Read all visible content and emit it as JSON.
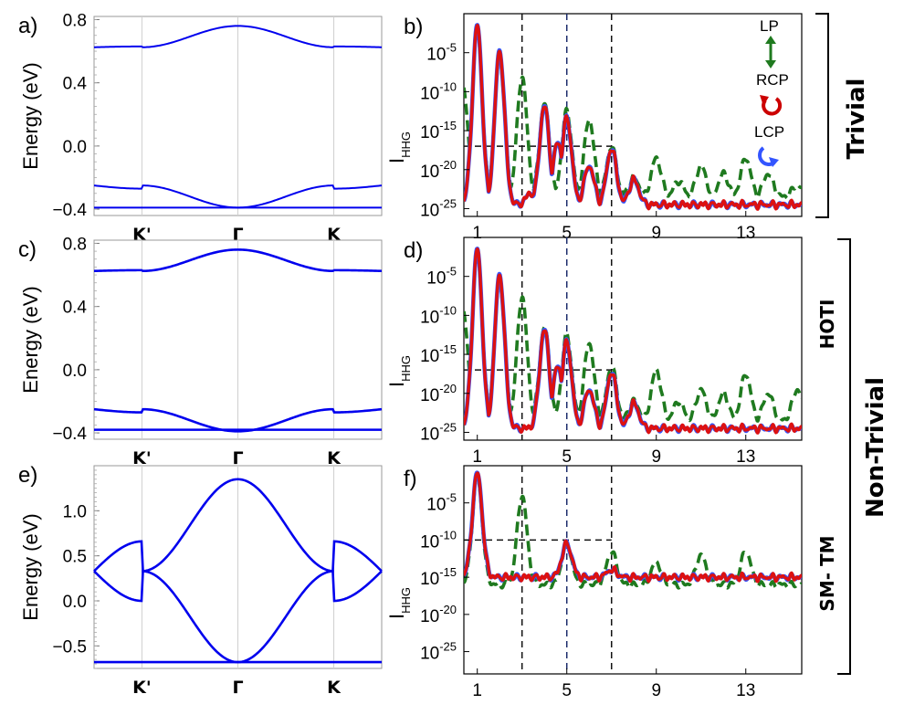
{
  "chart_data": [
    {
      "panel": "a)",
      "type": "line",
      "ylabel": "Energy (eV)",
      "ylim": [
        -0.44,
        0.82
      ],
      "yticks": [
        "0.8",
        "0.4",
        "0.0",
        "−0.4"
      ],
      "ytick_values": [
        0.8,
        0.4,
        0.0,
        -0.4
      ],
      "xticks": [
        "K'",
        "Γ",
        "K"
      ],
      "bands": [
        {
          "name": "",
          "k_points": [
            "K'",
            "Γ",
            "K"
          ],
          "edge": 0.63,
          "center": 0.76,
          "periodic_cos": true
        },
        {
          "name": "",
          "edge": -0.27,
          "center": -0.245,
          "min_at_gamma": -0.39,
          "crossing": true
        },
        {
          "name": "",
          "flat": -0.39
        }
      ],
      "color": "#0000ee"
    },
    {
      "panel": "b)",
      "type": "line",
      "ylabel": "I_HHG",
      "yscale": "log",
      "ylim_exp": [
        -26,
        0
      ],
      "yticks_exp": [
        -5,
        -10,
        -15,
        -20,
        -25
      ],
      "xticks": [
        "1",
        "5",
        "9",
        "13"
      ],
      "xtick_values": [
        1,
        5,
        9,
        13
      ],
      "xlim": [
        0.4,
        15.5
      ],
      "vlines": [
        3,
        5,
        7
      ],
      "hline_exp": -17,
      "series": [
        {
          "name": "LP",
          "color": "#1f7a1f",
          "style": "dashed"
        },
        {
          "name": "RCP",
          "color": "#cc0000",
          "style": "solid"
        },
        {
          "name": "LCP",
          "color": "#3355ff",
          "style": "solid"
        }
      ],
      "harmonics_peak_exp": {
        "1": -1.5,
        "2": -5,
        "3": -12,
        "4": -12,
        "5": -14,
        "6": -17,
        "7": -17,
        "8": -21
      },
      "side_label": "Trivial"
    },
    {
      "panel": "c)",
      "type": "line",
      "ylabel": "Energy (eV)",
      "ylim": [
        -0.44,
        0.82
      ],
      "yticks": [
        "0.8",
        "0.4",
        "0.0",
        "−0.4"
      ],
      "ytick_values": [
        0.8,
        0.4,
        0.0,
        -0.4
      ],
      "xticks": [
        "K'",
        "Γ",
        "K"
      ]
    },
    {
      "panel": "d)",
      "type": "line",
      "ylabel": "I_HHG",
      "yscale": "log",
      "ylim_exp": [
        -26,
        0
      ],
      "yticks_exp": [
        -5,
        -10,
        -15,
        -20,
        -25
      ],
      "xticks": [
        "1",
        "5",
        "9",
        "13"
      ],
      "xlim": [
        0.4,
        15.5
      ],
      "vlines": [
        3,
        5,
        7
      ],
      "hline_exp": -17,
      "side_label": "HOTI"
    },
    {
      "panel": "e)",
      "type": "line",
      "ylabel": "Energy (eV)",
      "ylim": [
        -0.75,
        1.5
      ],
      "yticks": [
        "1.0",
        "0.5",
        "0.0",
        "−0.5"
      ],
      "ytick_values": [
        1.0,
        0.5,
        0.0,
        -0.5
      ],
      "xticks": [
        "K'",
        "Γ",
        "K"
      ]
    },
    {
      "panel": "f)",
      "type": "line",
      "ylabel": "I_HHG",
      "yscale": "log",
      "ylim_exp": [
        -28,
        0
      ],
      "yticks_exp": [
        -5,
        -10,
        -15,
        -20,
        -25
      ],
      "xticks": [
        "1",
        "5",
        "9",
        "13"
      ],
      "xlim": [
        0.4,
        15.5
      ],
      "vlines": [
        3,
        5,
        7
      ],
      "hline_exp": -10,
      "side_label": "SM- TM"
    }
  ],
  "bracket_labels": {
    "trivial": "Trivial",
    "nontrivial": "Non-Trivial"
  },
  "legend": {
    "lp": "LP",
    "rcp": "RCP",
    "lcp": "LCP"
  }
}
